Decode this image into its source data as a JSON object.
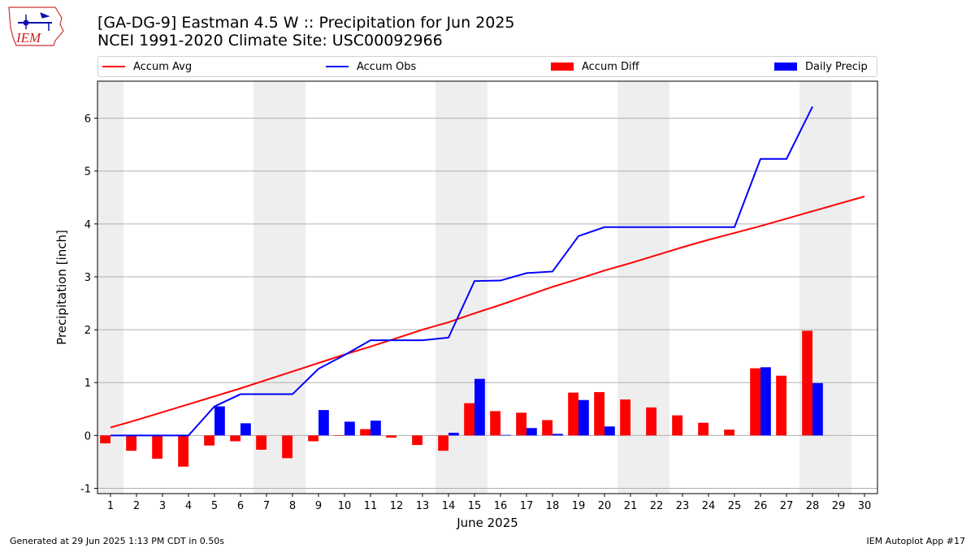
{
  "header": {
    "title_line1": "[GA-DG-9] Eastman 4.5 W :: Precipitation for Jun 2025",
    "title_line2": "NCEI 1991-2020 Climate Site: USC00092966"
  },
  "logo": {
    "text": "IEM"
  },
  "footer": {
    "generated": "Generated at 29 Jun 2025 1:13 PM CDT in 0.50s",
    "app": "IEM Autoplot App #17"
  },
  "legend": {
    "position": "top",
    "items": [
      {
        "label": "Accum Avg",
        "kind": "line",
        "color": "#ff0000"
      },
      {
        "label": "Accum Obs",
        "kind": "line",
        "color": "#0000ff"
      },
      {
        "label": "Accum Diff",
        "kind": "bar",
        "color": "#ff0000"
      },
      {
        "label": "Daily Precip",
        "kind": "bar",
        "color": "#0000ff"
      }
    ]
  },
  "chart_data": {
    "type": "bar",
    "xlabel": "June 2025",
    "ylabel": "Precipitation [inch]",
    "xlim": [
      0.5,
      30.5
    ],
    "ylim": [
      -1.1,
      6.7
    ],
    "yticks": [
      -1,
      0,
      1,
      2,
      3,
      4,
      5,
      6
    ],
    "grid": true,
    "weekend_shading_days": [
      1,
      7,
      8,
      14,
      15,
      21,
      22,
      28,
      29
    ],
    "weekend_color": "#eeeeee",
    "days": [
      1,
      2,
      3,
      4,
      5,
      6,
      7,
      8,
      9,
      10,
      11,
      12,
      13,
      14,
      15,
      16,
      17,
      18,
      19,
      20,
      21,
      22,
      23,
      24,
      25,
      26,
      27,
      28,
      29,
      30
    ],
    "series": [
      {
        "name": "Accum Avg",
        "kind": "line",
        "color": "#ff0000",
        "x": [
          1,
          2,
          3,
          4,
          5,
          6,
          7,
          8,
          9,
          10,
          11,
          12,
          13,
          14,
          15,
          16,
          17,
          18,
          19,
          20,
          21,
          22,
          23,
          24,
          25,
          26,
          27,
          28,
          29,
          30
        ],
        "values": [
          0.15,
          0.29,
          0.44,
          0.59,
          0.74,
          0.89,
          1.05,
          1.21,
          1.37,
          1.53,
          1.68,
          1.84,
          2.0,
          2.14,
          2.31,
          2.47,
          2.64,
          2.81,
          2.96,
          3.12,
          3.26,
          3.41,
          3.56,
          3.7,
          3.83,
          3.96,
          4.1,
          4.24,
          4.38,
          4.52
        ]
      },
      {
        "name": "Accum Obs",
        "kind": "line",
        "color": "#0000ff",
        "x": [
          1,
          2,
          3,
          4,
          5,
          6,
          7,
          8,
          9,
          10,
          11,
          12,
          13,
          14,
          15,
          16,
          17,
          18,
          19,
          20,
          21,
          22,
          23,
          24,
          25,
          26,
          27,
          28
        ],
        "values": [
          0.0,
          0.0,
          0.0,
          0.0,
          0.55,
          0.78,
          0.78,
          0.78,
          1.26,
          1.52,
          1.8,
          1.8,
          1.8,
          1.85,
          2.92,
          2.93,
          3.07,
          3.1,
          3.77,
          3.94,
          3.94,
          3.94,
          3.94,
          3.94,
          3.94,
          5.23,
          5.23,
          6.22
        ]
      },
      {
        "name": "Accum Diff",
        "kind": "bar",
        "color": "#ff0000",
        "x": [
          1,
          2,
          3,
          4,
          5,
          6,
          7,
          8,
          9,
          10,
          11,
          12,
          13,
          14,
          15,
          16,
          17,
          18,
          19,
          20,
          21,
          22,
          23,
          24,
          25,
          26,
          27,
          28
        ],
        "values": [
          -0.15,
          -0.29,
          -0.44,
          -0.59,
          -0.19,
          -0.11,
          -0.27,
          -0.43,
          -0.11,
          -0.01,
          0.12,
          -0.04,
          -0.18,
          -0.29,
          0.61,
          0.46,
          0.43,
          0.29,
          0.81,
          0.82,
          0.68,
          0.53,
          0.38,
          0.24,
          0.11,
          1.27,
          1.13,
          1.98
        ]
      },
      {
        "name": "Daily Precip",
        "kind": "bar",
        "color": "#0000ff",
        "x": [
          1,
          2,
          3,
          4,
          5,
          6,
          7,
          8,
          9,
          10,
          11,
          12,
          13,
          14,
          15,
          16,
          17,
          18,
          19,
          20,
          21,
          22,
          23,
          24,
          25,
          26,
          27,
          28
        ],
        "values": [
          0.0,
          0.0,
          0.0,
          0.0,
          0.55,
          0.23,
          0.0,
          0.0,
          0.48,
          0.26,
          0.28,
          0.0,
          0.0,
          0.05,
          1.07,
          0.01,
          0.14,
          0.03,
          0.67,
          0.17,
          0.0,
          0.0,
          0.0,
          0.0,
          0.0,
          1.29,
          0.0,
          0.99
        ]
      }
    ]
  }
}
